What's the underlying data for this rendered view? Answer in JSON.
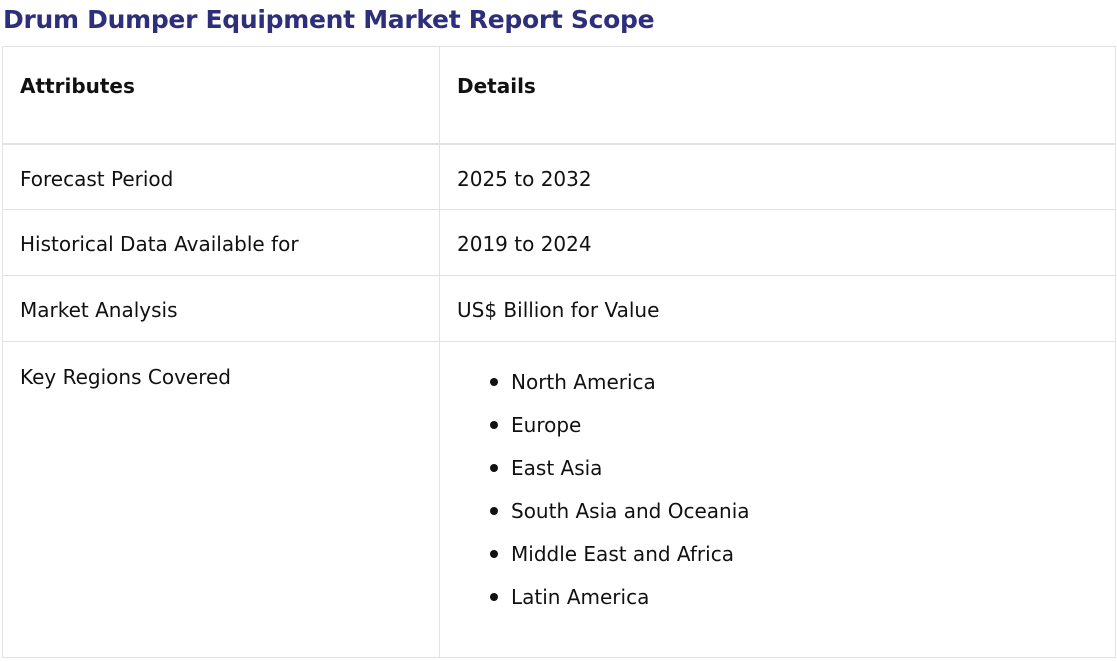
{
  "title": "Drum Dumper Equipment Market Report Scope",
  "table": {
    "headers": {
      "attributes": "Attributes",
      "details": "Details"
    },
    "rows": [
      {
        "attribute": "Forecast Period",
        "detail": "2025 to 2032"
      },
      {
        "attribute": "Historical Data Available for",
        "detail": "2019 to 2024"
      },
      {
        "attribute": "Market Analysis",
        "detail": "US$ Billion for Value"
      }
    ],
    "regions": {
      "attribute": "Key Regions Covered",
      "items": [
        "North America",
        "Europe",
        "East Asia",
        "South Asia and Oceania",
        "Middle East and Africa",
        "Latin America"
      ]
    }
  },
  "colors": {
    "title": "#2e2f7a",
    "border": "#e2e2e2",
    "text": "#111111"
  }
}
